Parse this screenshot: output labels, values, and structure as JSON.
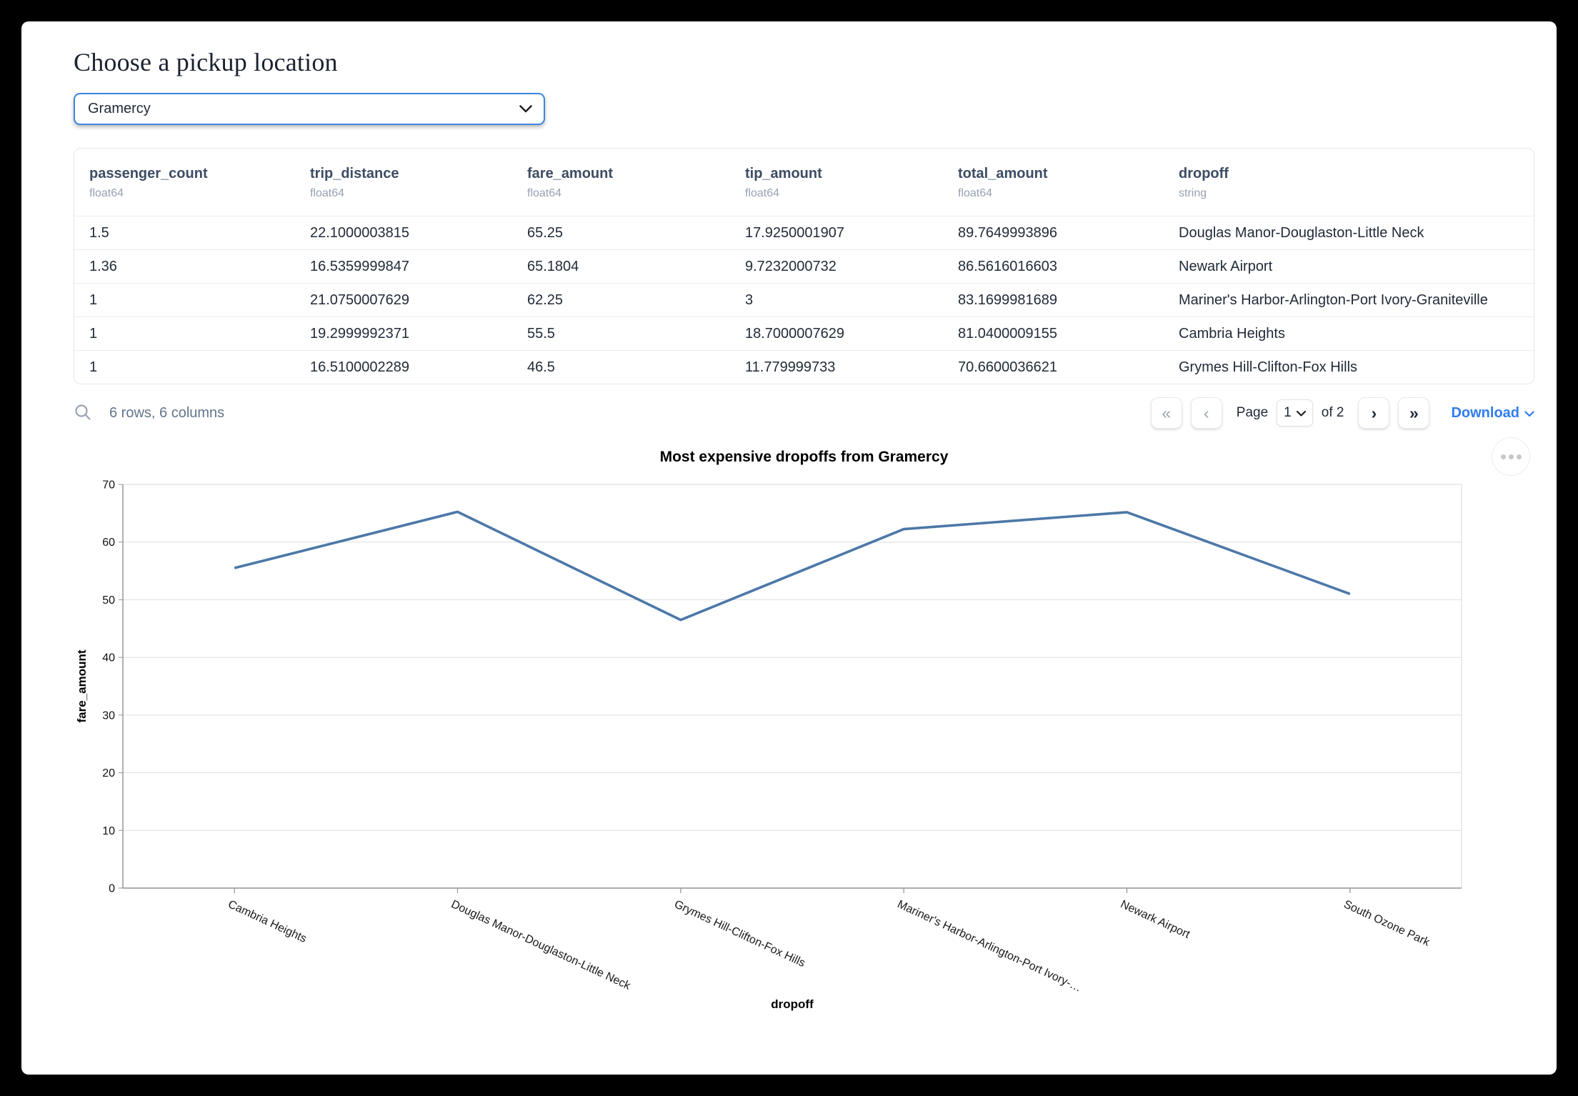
{
  "page": {
    "title": "Choose a pickup location"
  },
  "picker": {
    "value": "Gramercy"
  },
  "table": {
    "columns": [
      {
        "name": "passenger_count",
        "type": "float64"
      },
      {
        "name": "trip_distance",
        "type": "float64"
      },
      {
        "name": "fare_amount",
        "type": "float64"
      },
      {
        "name": "tip_amount",
        "type": "float64"
      },
      {
        "name": "total_amount",
        "type": "float64"
      },
      {
        "name": "dropoff",
        "type": "string"
      }
    ],
    "rows": [
      [
        "1.5",
        "22.1000003815",
        "65.25",
        "17.9250001907",
        "89.7649993896",
        "Douglas Manor-Douglaston-Little Neck"
      ],
      [
        "1.36",
        "16.5359999847",
        "65.1804",
        "9.7232000732",
        "86.5616016603",
        "Newark Airport"
      ],
      [
        "1",
        "21.0750007629",
        "62.25",
        "3",
        "83.1699981689",
        "Mariner's Harbor-Arlington-Port Ivory-Graniteville"
      ],
      [
        "1",
        "19.2999992371",
        "55.5",
        "18.7000007629",
        "81.0400009155",
        "Cambria Heights"
      ],
      [
        "1",
        "16.5100002289",
        "46.5",
        "11.779999733",
        "70.6600036621",
        "Grymes Hill-Clifton-Fox Hills"
      ]
    ],
    "footer": {
      "summary": "6 rows, 6 columns",
      "page_label": "Page",
      "page_value": "1",
      "of_label": "of 2",
      "download_label": "Download"
    }
  },
  "icons": {
    "first_page": "«",
    "prev_page": "‹",
    "next_page": "›",
    "last_page": "»",
    "chevron_down": "⌄"
  },
  "chart_data": {
    "type": "line",
    "title": "Most expensive dropoffs from Gramercy",
    "xlabel": "dropoff",
    "ylabel": "fare_amount",
    "categories": [
      "Cambria Heights",
      "Douglas Manor-Douglaston-Little Neck",
      "Grymes Hill-Clifton-Fox Hills",
      "Mariner's Harbor-Arlington-Port Ivory-…",
      "Newark Airport",
      "South Ozone Park"
    ],
    "values": [
      55.5,
      65.25,
      46.5,
      62.25,
      65.1804,
      51
    ],
    "ylim": [
      0,
      70
    ],
    "ytick_step": 10,
    "grid": true,
    "legend": "none",
    "x_label_angle": 25,
    "line_color": "#4c78a8"
  },
  "colors": {
    "select_border": "#3a87dd",
    "link_blue": "#2e7cf0",
    "line": "#4c78a8",
    "grid": "#dddddd",
    "axis": "#919191"
  }
}
